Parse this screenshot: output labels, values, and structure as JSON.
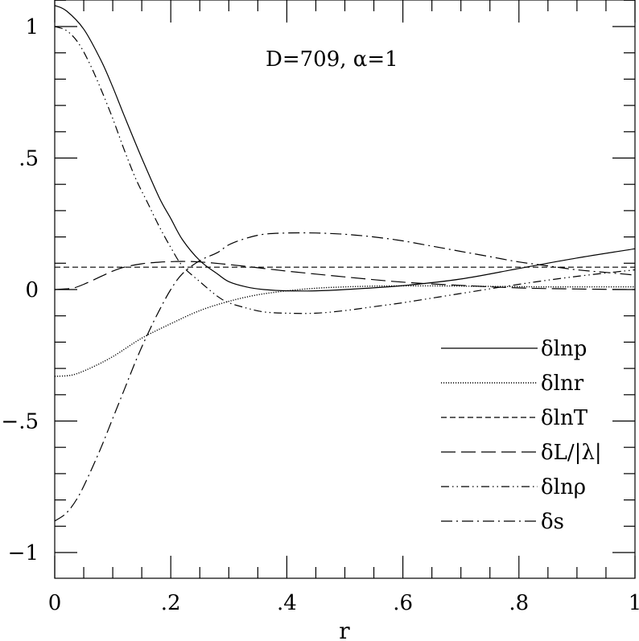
{
  "chart_data": {
    "type": "line",
    "annotation": "D=709,  α=1",
    "xlabel": "r",
    "ylabel": "",
    "xlim": [
      0,
      1
    ],
    "ylim": [
      -1.1,
      1.1
    ],
    "x_ticks": [
      {
        "value": 0,
        "label": "0"
      },
      {
        "value": 0.2,
        "label": ".2"
      },
      {
        "value": 0.4,
        "label": ".4"
      },
      {
        "value": 0.6,
        "label": ".6"
      },
      {
        "value": 0.8,
        "label": ".8"
      },
      {
        "value": 1,
        "label": "1"
      }
    ],
    "y_ticks": [
      {
        "value": -1,
        "label": "−1"
      },
      {
        "value": -0.5,
        "label": "−.5"
      },
      {
        "value": 0,
        "label": "0"
      },
      {
        "value": 0.5,
        "label": ".5"
      },
      {
        "value": 1,
        "label": "1"
      }
    ],
    "x_minor_step": 0.05,
    "y_minor_step": 0.1,
    "legend_position": "lower-right",
    "grid": false,
    "series": [
      {
        "name": "δlnp",
        "dash": "solid",
        "x": [
          0,
          0.02,
          0.05,
          0.08,
          0.1,
          0.12,
          0.15,
          0.18,
          0.2,
          0.22,
          0.25,
          0.28,
          0.3,
          0.33,
          0.36,
          0.4,
          0.45,
          0.5,
          0.6,
          0.7,
          0.8,
          0.9,
          1.0
        ],
        "y": [
          1.08,
          1.06,
          0.99,
          0.87,
          0.77,
          0.66,
          0.5,
          0.35,
          0.27,
          0.19,
          0.11,
          0.06,
          0.03,
          0.01,
          0.0,
          -0.005,
          -0.005,
          0.0,
          0.015,
          0.04,
          0.08,
          0.12,
          0.155
        ]
      },
      {
        "name": "δlnr",
        "dash": "dotted",
        "x": [
          0,
          0.03,
          0.06,
          0.1,
          0.15,
          0.2,
          0.25,
          0.3,
          0.35,
          0.4,
          0.45,
          0.5,
          0.55,
          0.6,
          0.65,
          0.7,
          0.75,
          0.8,
          0.85,
          0.9,
          0.95,
          1.0
        ],
        "y": [
          -0.33,
          -0.325,
          -0.3,
          -0.255,
          -0.185,
          -0.13,
          -0.08,
          -0.045,
          -0.02,
          -0.005,
          0.005,
          0.01,
          0.013,
          0.014,
          0.014,
          0.013,
          0.012,
          0.011,
          0.01,
          0.01,
          0.01,
          0.01
        ]
      },
      {
        "name": "δlnT",
        "dash": "dashed-short",
        "x": [
          0,
          1
        ],
        "y": [
          0.085,
          0.085
        ]
      },
      {
        "name": "δL/|λ|",
        "dash": "dashed-long",
        "x": [
          0,
          0.03,
          0.05,
          0.08,
          0.1,
          0.12,
          0.15,
          0.18,
          0.2,
          0.22,
          0.25,
          0.3,
          0.35,
          0.4,
          0.5,
          0.6,
          0.7,
          0.8,
          0.9,
          1.0
        ],
        "y": [
          0.0,
          0.005,
          0.02,
          0.05,
          0.07,
          0.085,
          0.098,
          0.104,
          0.106,
          0.107,
          0.105,
          0.095,
          0.083,
          0.07,
          0.048,
          0.028,
          0.016,
          0.006,
          0.002,
          0.0
        ]
      },
      {
        "name": "δlnρ",
        "dash": "dash-dot-dot",
        "x": [
          0,
          0.02,
          0.04,
          0.06,
          0.08,
          0.1,
          0.12,
          0.14,
          0.16,
          0.18,
          0.2,
          0.22,
          0.25,
          0.28,
          0.3,
          0.33,
          0.36,
          0.4,
          0.45,
          0.5,
          0.55,
          0.6,
          0.7,
          0.8,
          0.9,
          1.0
        ],
        "y": [
          1.0,
          0.985,
          0.94,
          0.86,
          0.76,
          0.65,
          0.53,
          0.42,
          0.33,
          0.24,
          0.16,
          0.09,
          0.03,
          -0.025,
          -0.05,
          -0.07,
          -0.085,
          -0.09,
          -0.09,
          -0.08,
          -0.065,
          -0.05,
          -0.015,
          0.02,
          0.05,
          0.075
        ]
      },
      {
        "name": "δs",
        "dash": "dash-dot",
        "x": [
          0,
          0.02,
          0.04,
          0.06,
          0.08,
          0.1,
          0.12,
          0.14,
          0.16,
          0.18,
          0.2,
          0.22,
          0.25,
          0.28,
          0.3,
          0.33,
          0.36,
          0.4,
          0.45,
          0.5,
          0.55,
          0.6,
          0.65,
          0.7,
          0.75,
          0.8,
          0.85,
          0.9,
          0.95,
          1.0
        ],
        "y": [
          -0.88,
          -0.85,
          -0.79,
          -0.7,
          -0.6,
          -0.49,
          -0.38,
          -0.27,
          -0.17,
          -0.08,
          -0.0,
          0.06,
          0.11,
          0.14,
          0.17,
          0.195,
          0.21,
          0.215,
          0.215,
          0.21,
          0.2,
          0.185,
          0.165,
          0.145,
          0.125,
          0.105,
          0.09,
          0.075,
          0.065,
          0.055
        ]
      }
    ]
  }
}
